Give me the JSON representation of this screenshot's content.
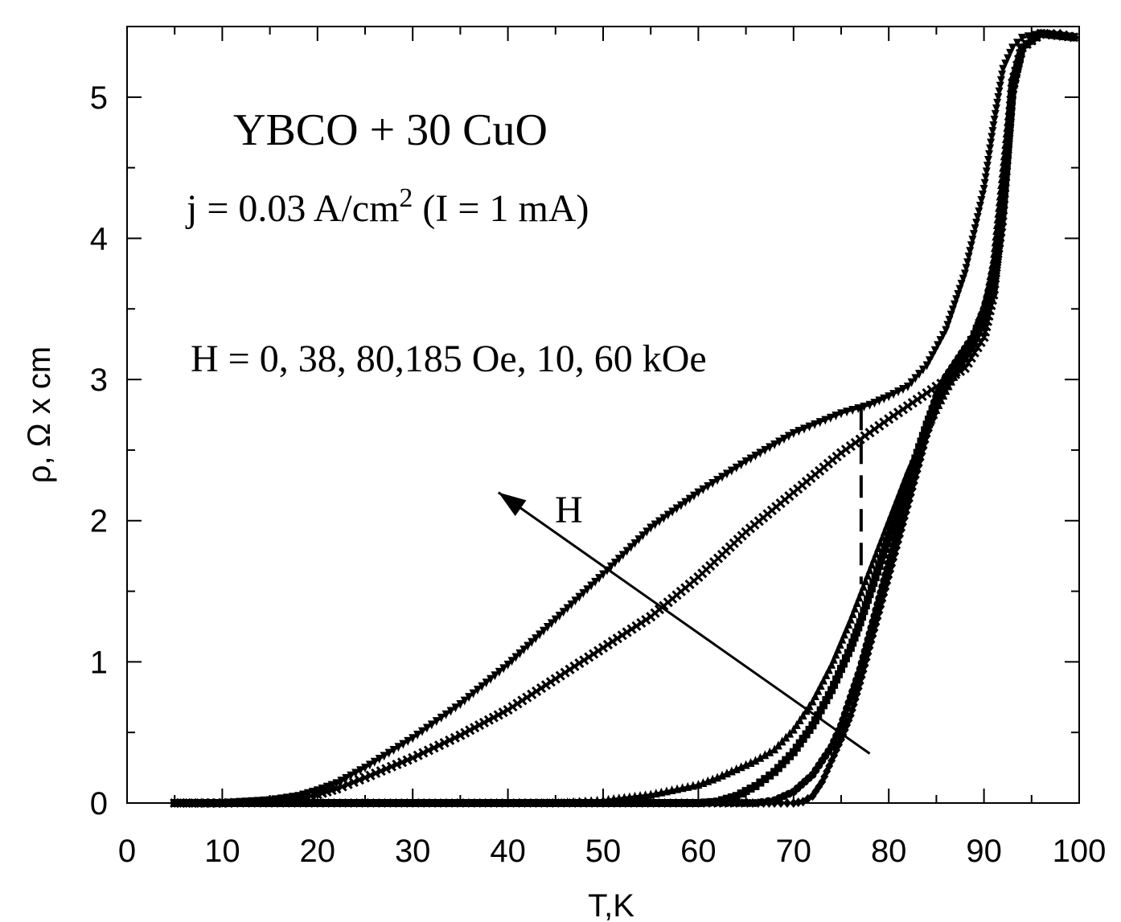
{
  "chart_data": {
    "type": "line",
    "xlabel": "T,K",
    "ylabel": "ρ, Ω x cm",
    "xlim": [
      0,
      100
    ],
    "ylim": [
      0,
      5.5
    ],
    "x_ticks": [
      "0",
      "10",
      "20",
      "30",
      "40",
      "50",
      "60",
      "70",
      "80",
      "90",
      "100"
    ],
    "y_ticks": [
      "0",
      "1",
      "2",
      "3",
      "4",
      "5"
    ],
    "grid": false,
    "annotations": {
      "title": "YBCO + 30 CuO",
      "current": "j = 0.03 A/cm",
      "current_sup": "2",
      "current_tail": " (I = 1 mA)",
      "field": "H = 0, 38, 80,185 Oe, 10, 60 kOe",
      "arrow_label": "H"
    },
    "arrow": {
      "from": [
        78,
        0.35
      ],
      "to": [
        39,
        2.2
      ]
    },
    "series": [
      {
        "marker": "diamond",
        "points": [
          [
            5,
            0
          ],
          [
            20,
            0
          ],
          [
            40,
            0
          ],
          [
            60,
            0
          ],
          [
            68,
            0
          ],
          [
            70,
            0
          ],
          [
            71,
            0.01
          ],
          [
            72,
            0.05
          ],
          [
            73,
            0.15
          ],
          [
            74,
            0.3
          ],
          [
            75,
            0.45
          ],
          [
            76,
            0.62
          ],
          [
            77,
            0.85
          ],
          [
            78,
            1.1
          ],
          [
            79,
            1.35
          ],
          [
            80,
            1.6
          ],
          [
            81,
            1.85
          ],
          [
            82,
            2.1
          ],
          [
            83,
            2.35
          ],
          [
            84,
            2.6
          ],
          [
            85,
            2.8
          ],
          [
            86,
            2.95
          ],
          [
            87,
            3.05
          ],
          [
            88,
            3.15
          ],
          [
            89,
            3.25
          ],
          [
            90,
            3.4
          ],
          [
            91,
            3.6
          ],
          [
            92,
            4.1
          ],
          [
            93,
            5.0
          ],
          [
            94,
            5.35
          ],
          [
            96,
            5.45
          ],
          [
            98,
            5.45
          ],
          [
            100,
            5.42
          ]
        ]
      },
      {
        "marker": "circle",
        "points": [
          [
            5,
            0
          ],
          [
            20,
            0
          ],
          [
            40,
            0
          ],
          [
            60,
            0
          ],
          [
            66,
            0
          ],
          [
            68,
            0.02
          ],
          [
            70,
            0.08
          ],
          [
            72,
            0.2
          ],
          [
            74,
            0.4
          ],
          [
            75,
            0.55
          ],
          [
            76,
            0.75
          ],
          [
            77,
            0.95
          ],
          [
            78,
            1.2
          ],
          [
            79,
            1.45
          ],
          [
            80,
            1.7
          ],
          [
            81,
            1.95
          ],
          [
            82,
            2.2
          ],
          [
            83,
            2.45
          ],
          [
            84,
            2.68
          ],
          [
            85,
            2.88
          ],
          [
            86,
            3.02
          ],
          [
            87,
            3.12
          ],
          [
            88,
            3.22
          ],
          [
            89,
            3.32
          ],
          [
            90,
            3.5
          ],
          [
            91,
            3.75
          ],
          [
            92,
            4.3
          ],
          [
            93,
            5.1
          ],
          [
            94,
            5.35
          ],
          [
            96,
            5.45
          ],
          [
            100,
            5.42
          ]
        ]
      },
      {
        "marker": "square",
        "points": [
          [
            5,
            0
          ],
          [
            20,
            0
          ],
          [
            40,
            0
          ],
          [
            60,
            0
          ],
          [
            62,
            0.01
          ],
          [
            64,
            0.05
          ],
          [
            66,
            0.12
          ],
          [
            68,
            0.22
          ],
          [
            70,
            0.36
          ],
          [
            72,
            0.55
          ],
          [
            74,
            0.8
          ],
          [
            76,
            1.1
          ],
          [
            77,
            1.28
          ],
          [
            78,
            1.48
          ],
          [
            79,
            1.68
          ],
          [
            80,
            1.88
          ],
          [
            81,
            2.08
          ],
          [
            82,
            2.28
          ],
          [
            83,
            2.48
          ],
          [
            84,
            2.68
          ],
          [
            85,
            2.86
          ],
          [
            86,
            3.0
          ],
          [
            87,
            3.1
          ],
          [
            88,
            3.2
          ],
          [
            89,
            3.32
          ],
          [
            90,
            3.48
          ],
          [
            91,
            3.7
          ],
          [
            92,
            4.2
          ],
          [
            93,
            5.05
          ],
          [
            94,
            5.35
          ],
          [
            96,
            5.45
          ],
          [
            100,
            5.42
          ]
        ]
      },
      {
        "marker": "triangle-up",
        "points": [
          [
            5,
            0
          ],
          [
            20,
            0
          ],
          [
            40,
            0
          ],
          [
            45,
            0
          ],
          [
            50,
            0.02
          ],
          [
            55,
            0.06
          ],
          [
            60,
            0.13
          ],
          [
            62,
            0.18
          ],
          [
            64,
            0.24
          ],
          [
            66,
            0.3
          ],
          [
            68,
            0.38
          ],
          [
            70,
            0.52
          ],
          [
            72,
            0.72
          ],
          [
            74,
            0.98
          ],
          [
            76,
            1.3
          ],
          [
            78,
            1.65
          ],
          [
            80,
            2.0
          ],
          [
            82,
            2.35
          ],
          [
            84,
            2.65
          ],
          [
            86,
            2.92
          ],
          [
            88,
            3.15
          ],
          [
            90,
            3.5
          ],
          [
            91,
            3.85
          ],
          [
            92,
            4.5
          ],
          [
            93,
            5.15
          ],
          [
            94,
            5.35
          ],
          [
            96,
            5.45
          ],
          [
            100,
            5.42
          ]
        ]
      },
      {
        "marker": "cross",
        "points": [
          [
            5,
            0
          ],
          [
            10,
            0
          ],
          [
            15,
            0.01
          ],
          [
            18,
            0.03
          ],
          [
            20,
            0.06
          ],
          [
            22,
            0.1
          ],
          [
            25,
            0.18
          ],
          [
            30,
            0.32
          ],
          [
            35,
            0.48
          ],
          [
            40,
            0.66
          ],
          [
            45,
            0.88
          ],
          [
            50,
            1.1
          ],
          [
            55,
            1.32
          ],
          [
            60,
            1.6
          ],
          [
            65,
            1.92
          ],
          [
            70,
            2.2
          ],
          [
            75,
            2.48
          ],
          [
            80,
            2.72
          ],
          [
            85,
            2.95
          ],
          [
            88,
            3.08
          ],
          [
            90,
            3.3
          ],
          [
            91,
            3.6
          ],
          [
            92,
            4.3
          ],
          [
            93,
            5.1
          ],
          [
            94,
            5.35
          ],
          [
            96,
            5.45
          ],
          [
            100,
            5.42
          ]
        ]
      },
      {
        "marker": "triangle-down",
        "points": [
          [
            5,
            0
          ],
          [
            10,
            0
          ],
          [
            15,
            0.02
          ],
          [
            18,
            0.05
          ],
          [
            20,
            0.09
          ],
          [
            22,
            0.14
          ],
          [
            25,
            0.25
          ],
          [
            30,
            0.46
          ],
          [
            35,
            0.7
          ],
          [
            40,
            0.98
          ],
          [
            45,
            1.3
          ],
          [
            50,
            1.62
          ],
          [
            55,
            1.95
          ],
          [
            60,
            2.2
          ],
          [
            65,
            2.42
          ],
          [
            70,
            2.62
          ],
          [
            75,
            2.76
          ],
          [
            78,
            2.82
          ],
          [
            80,
            2.88
          ],
          [
            82,
            2.95
          ],
          [
            84,
            3.1
          ],
          [
            86,
            3.35
          ],
          [
            88,
            3.75
          ],
          [
            90,
            4.35
          ],
          [
            91,
            4.8
          ],
          [
            92,
            5.2
          ],
          [
            93,
            5.35
          ],
          [
            94,
            5.42
          ],
          [
            96,
            5.45
          ],
          [
            100,
            5.42
          ]
        ]
      }
    ]
  }
}
